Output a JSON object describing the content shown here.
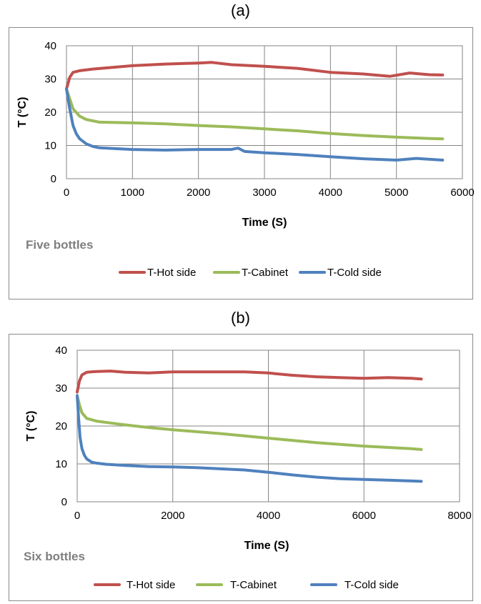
{
  "chart_data": [
    {
      "type": "line",
      "title": "(a)",
      "annotation": "Five bottles",
      "xlabel": "Time (S)",
      "ylabel": "T (°C)",
      "xlim": [
        0,
        6000
      ],
      "ylim": [
        0,
        40
      ],
      "xticks": [
        "0",
        "1000",
        "2000",
        "3000",
        "4000",
        "5000",
        "6000"
      ],
      "yticks": [
        "0",
        "10",
        "20",
        "30",
        "40"
      ],
      "grid": true,
      "legend_position": "bottom",
      "series": [
        {
          "name": "T-Hot side",
          "color": "#c0504d",
          "x": [
            0,
            50,
            100,
            200,
            400,
            700,
            1000,
            1500,
            2000,
            2200,
            2500,
            3000,
            3500,
            4000,
            4500,
            4900,
            5200,
            5500,
            5700
          ],
          "y": [
            27,
            30.5,
            32,
            32.5,
            33,
            33.5,
            34,
            34.5,
            34.8,
            35,
            34.3,
            33.8,
            33.2,
            32,
            31.5,
            30.8,
            31.8,
            31.3,
            31.2
          ]
        },
        {
          "name": "T-Cabinet",
          "color": "#9bbb59",
          "x": [
            0,
            50,
            100,
            200,
            300,
            500,
            1000,
            1500,
            2000,
            2500,
            3000,
            3500,
            4000,
            4500,
            5000,
            5500,
            5700
          ],
          "y": [
            27,
            24,
            21,
            18.8,
            17.8,
            17,
            16.8,
            16.5,
            16,
            15.6,
            15,
            14.4,
            13.6,
            13,
            12.5,
            12.1,
            12
          ]
        },
        {
          "name": "T-Cold side",
          "color": "#4f81bd",
          "x": [
            0,
            50,
            100,
            150,
            200,
            300,
            400,
            500,
            1000,
            1500,
            2000,
            2500,
            2600,
            2700,
            3000,
            3500,
            4000,
            4500,
            5000,
            5300,
            5700
          ],
          "y": [
            27,
            21,
            16,
            13.5,
            12,
            10.5,
            9.7,
            9.3,
            8.8,
            8.6,
            8.8,
            8.8,
            9.2,
            8.2,
            7.8,
            7.3,
            6.6,
            6,
            5.6,
            6.1,
            5.6
          ]
        }
      ]
    },
    {
      "type": "line",
      "title": "(b)",
      "annotation": "Six bottles",
      "xlabel": "Time (S)",
      "ylabel": "T (°C)",
      "xlim": [
        0,
        8000
      ],
      "ylim": [
        0,
        40
      ],
      "xticks": [
        "0",
        "2000",
        "4000",
        "6000",
        "8000"
      ],
      "yticks": [
        "0",
        "10",
        "20",
        "30",
        "40"
      ],
      "grid": true,
      "legend_position": "bottom",
      "series": [
        {
          "name": "T-Hot side",
          "color": "#c0504d",
          "x": [
            0,
            50,
            100,
            200,
            400,
            700,
            1000,
            1500,
            2000,
            2500,
            3000,
            3500,
            4000,
            4500,
            5000,
            5500,
            6000,
            6500,
            7000,
            7200
          ],
          "y": [
            29,
            32,
            33.5,
            34.2,
            34.4,
            34.5,
            34.2,
            34,
            34.3,
            34.3,
            34.3,
            34.3,
            34,
            33.4,
            33,
            32.8,
            32.6,
            32.8,
            32.6,
            32.4
          ]
        },
        {
          "name": "T-Cabinet",
          "color": "#9bbb59",
          "x": [
            0,
            50,
            100,
            200,
            400,
            700,
            1000,
            1500,
            2000,
            3000,
            4000,
            5000,
            6000,
            7000,
            7200
          ],
          "y": [
            28,
            25.5,
            23.5,
            22,
            21.3,
            20.8,
            20.3,
            19.6,
            19,
            18,
            16.8,
            15.6,
            14.7,
            14,
            13.8
          ]
        },
        {
          "name": "T-Cold side",
          "color": "#4f81bd",
          "x": [
            0,
            30,
            60,
            100,
            150,
            200,
            300,
            400,
            600,
            1000,
            1500,
            2000,
            2500,
            3000,
            3500,
            4000,
            4500,
            5000,
            5500,
            6000,
            6500,
            7000,
            7200
          ],
          "y": [
            28,
            22,
            17,
            14,
            12.3,
            11.3,
            10.5,
            10.2,
            9.9,
            9.6,
            9.3,
            9.2,
            9,
            8.7,
            8.4,
            7.8,
            7.1,
            6.5,
            6.1,
            5.9,
            5.7,
            5.5,
            5.4
          ]
        }
      ]
    }
  ]
}
